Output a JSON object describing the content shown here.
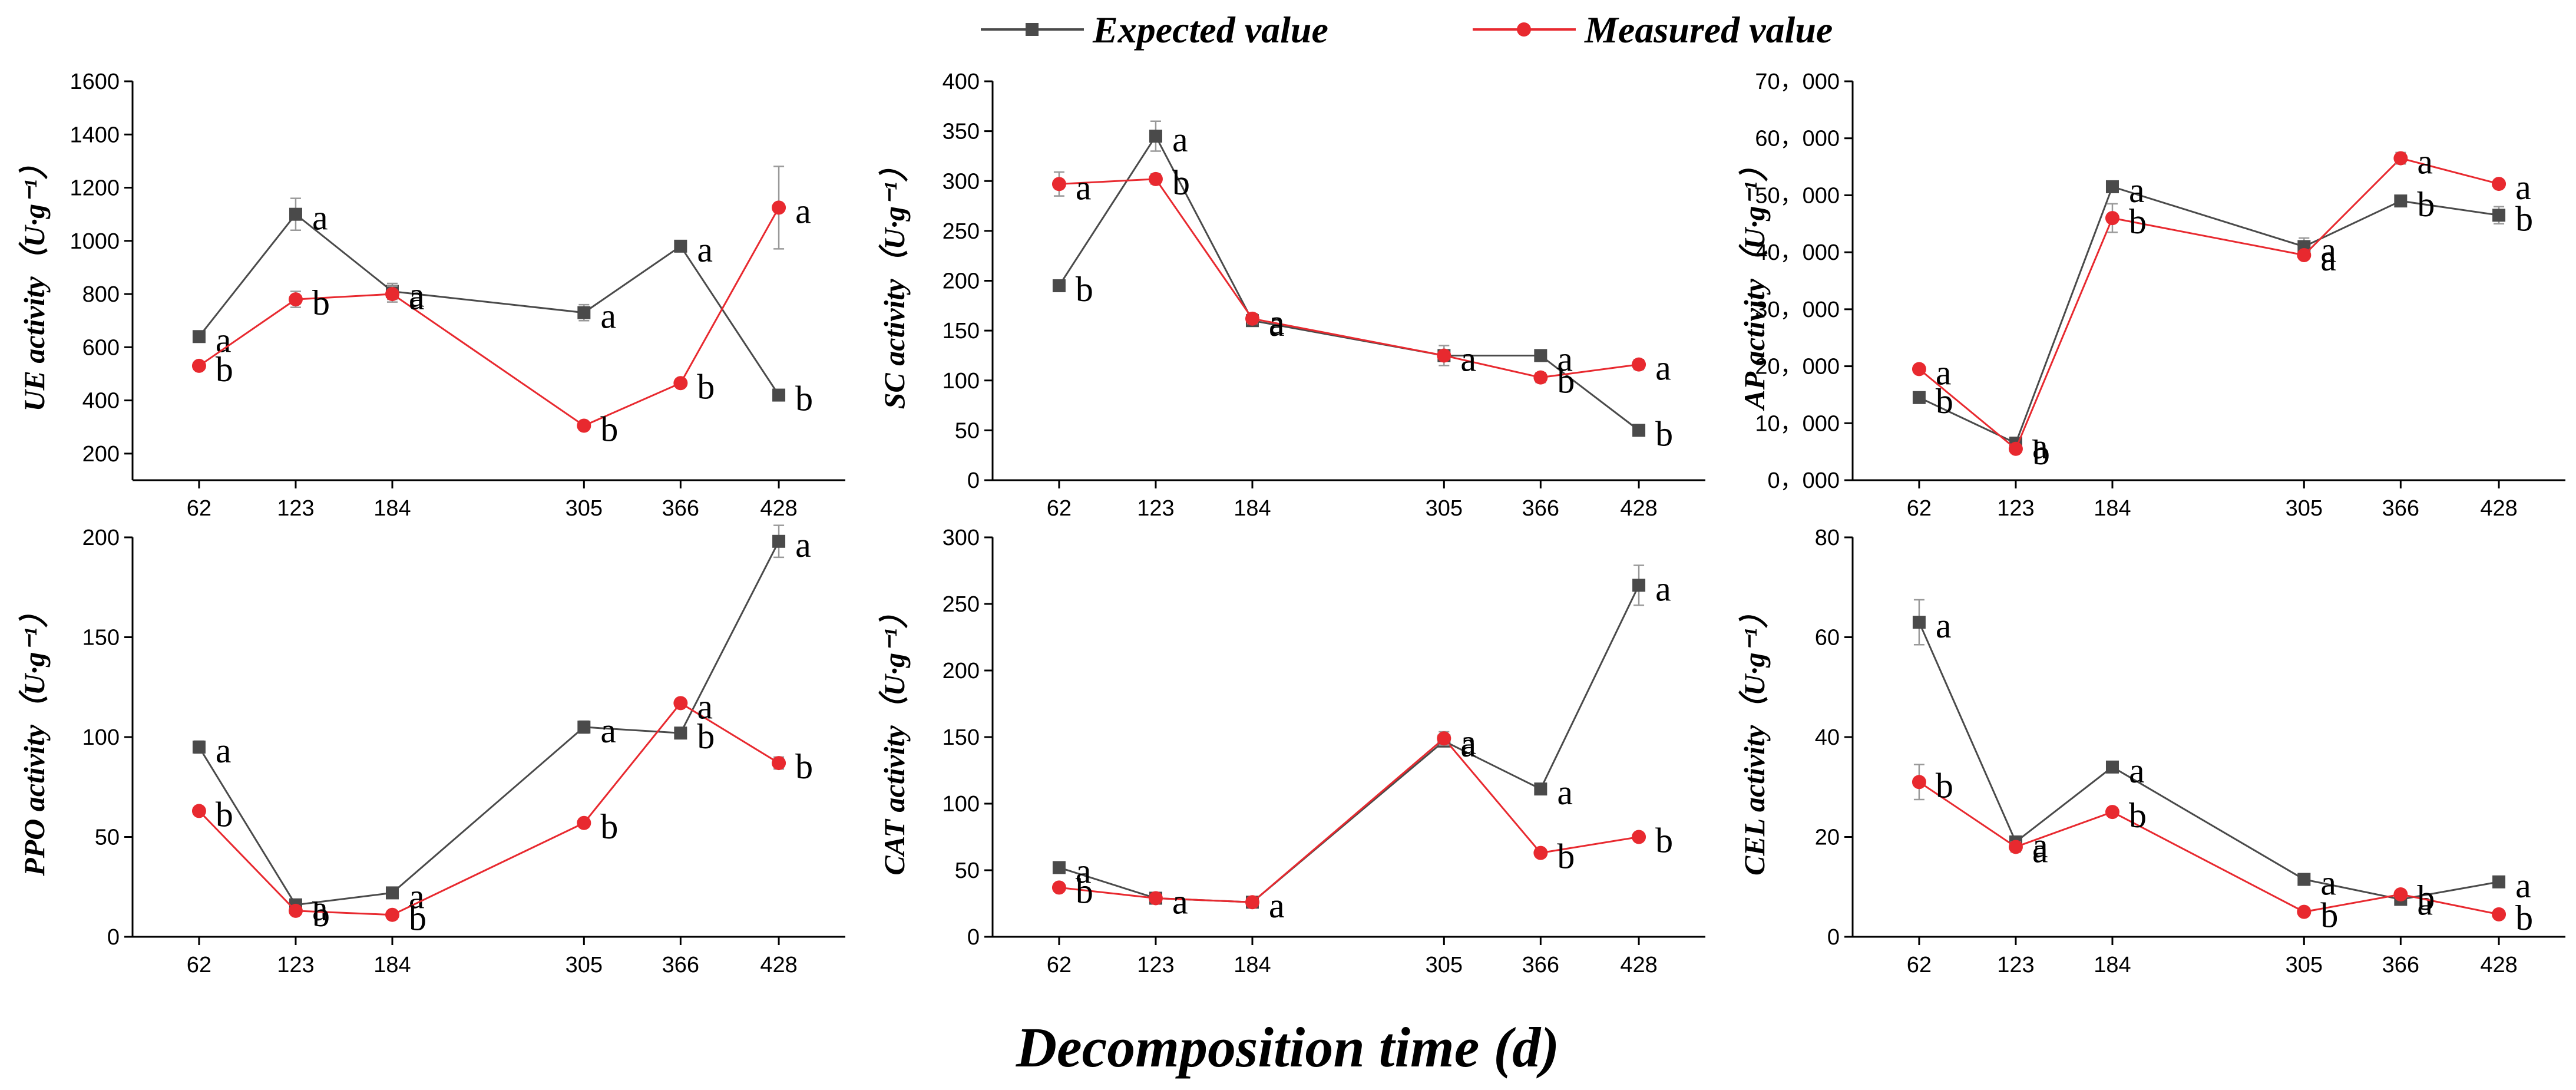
{
  "legend": {
    "expected": "Expected value",
    "measured": "Measured value"
  },
  "colors": {
    "expected": "#4a4a4a",
    "measured": "#e8292f",
    "error_bar": "#999999"
  },
  "xlabel": "Decomposition time (d)",
  "chart_data": [
    {
      "type": "line",
      "id": "ue",
      "ylabel": "UE activity（U·g⁻¹）",
      "x": [
        62,
        123,
        184,
        305,
        366,
        428
      ],
      "ylim": [
        100,
        1600
      ],
      "yticks": [
        200,
        400,
        600,
        800,
        1000,
        1200,
        1400,
        1600
      ],
      "ytick_labels": [
        "200",
        "400",
        "600",
        "800",
        "1000",
        "1200",
        "1400",
        "1600"
      ],
      "series": [
        {
          "name": "Expected value",
          "values": [
            640,
            1100,
            810,
            730,
            980,
            420
          ],
          "errors": [
            20,
            60,
            30,
            30,
            15,
            15
          ],
          "letters": [
            "a",
            "a",
            "a",
            "a",
            "a",
            "b"
          ]
        },
        {
          "name": "Measured value",
          "values": [
            530,
            780,
            800,
            305,
            465,
            1125
          ],
          "errors": [
            15,
            30,
            30,
            15,
            15,
            155
          ],
          "letters": [
            "b",
            "b",
            "a",
            "b",
            "b",
            "a"
          ]
        }
      ]
    },
    {
      "type": "line",
      "id": "sc",
      "ylabel": "SC activity（U·g⁻¹）",
      "x": [
        62,
        123,
        184,
        305,
        366,
        428
      ],
      "ylim": [
        0,
        400
      ],
      "yticks": [
        0,
        50,
        100,
        150,
        200,
        250,
        300,
        350,
        400
      ],
      "ytick_labels": [
        "0",
        "50",
        "100",
        "150",
        "200",
        "250",
        "300",
        "350",
        "400"
      ],
      "series": [
        {
          "name": "Expected value",
          "values": [
            195,
            345,
            160,
            125,
            125,
            50
          ],
          "errors": [
            5,
            15,
            5,
            5,
            3,
            3
          ],
          "letters": [
            "b",
            "a",
            "a",
            "a",
            "a",
            "b"
          ]
        },
        {
          "name": "Measured value",
          "values": [
            297,
            302,
            162,
            125,
            103,
            116
          ],
          "errors": [
            12,
            5,
            5,
            10,
            5,
            5
          ],
          "letters": [
            "a",
            "b",
            "a",
            "a",
            "b",
            "a"
          ]
        }
      ]
    },
    {
      "type": "line",
      "id": "ap",
      "ylabel": "AP activity（U·g⁻¹）",
      "x": [
        62,
        123,
        184,
        305,
        366,
        428
      ],
      "ylim": [
        0,
        70000
      ],
      "yticks": [
        0,
        10000,
        20000,
        30000,
        40000,
        50000,
        60000,
        70000
      ],
      "ytick_labels": [
        "0，000",
        "10，000",
        "20，000",
        "30，000",
        "40，000",
        "50，000",
        "60，000",
        "70，000"
      ],
      "series": [
        {
          "name": "Expected value",
          "values": [
            14500,
            6500,
            51500,
            41000,
            49000,
            46500
          ],
          "errors": [
            500,
            500,
            1000,
            1500,
            700,
            1500
          ],
          "letters": [
            "b",
            "a",
            "a",
            "a",
            "b",
            "b"
          ]
        },
        {
          "name": "Measured value",
          "values": [
            19500,
            5500,
            46000,
            39500,
            56500,
            52000
          ],
          "errors": [
            500,
            500,
            2500,
            700,
            1000,
            700
          ],
          "letters": [
            "a",
            "b",
            "b",
            "a",
            "a",
            "a"
          ]
        }
      ]
    },
    {
      "type": "line",
      "id": "ppo",
      "ylabel": "PPO activity（U·g⁻¹）",
      "x": [
        62,
        123,
        184,
        305,
        366,
        428
      ],
      "ylim": [
        0,
        200
      ],
      "yticks": [
        0,
        50,
        100,
        150,
        200
      ],
      "ytick_labels": [
        "0",
        "50",
        "100",
        "150",
        "200"
      ],
      "series": [
        {
          "name": "Expected value",
          "values": [
            95,
            16,
            22,
            105,
            102,
            198
          ],
          "errors": [
            3,
            2,
            2,
            3,
            2,
            8
          ],
          "letters": [
            "a",
            "a",
            "a",
            "a",
            "b",
            "a"
          ]
        },
        {
          "name": "Measured value",
          "values": [
            63,
            13,
            11,
            57,
            117,
            87
          ],
          "errors": [
            2,
            2,
            2,
            2,
            2,
            3
          ],
          "letters": [
            "b",
            "b",
            "b",
            "b",
            "a",
            "b"
          ]
        }
      ]
    },
    {
      "type": "line",
      "id": "cat",
      "ylabel": "CAT activity（U·g⁻¹）",
      "x": [
        62,
        123,
        184,
        305,
        366,
        428
      ],
      "ylim": [
        0,
        300
      ],
      "yticks": [
        0,
        50,
        100,
        150,
        200,
        250,
        300
      ],
      "ytick_labels": [
        "0",
        "50",
        "100",
        "150",
        "200",
        "250",
        "300"
      ],
      "series": [
        {
          "name": "Expected value",
          "values": [
            52,
            29,
            26,
            147,
            111,
            264
          ],
          "errors": [
            2,
            2,
            2,
            3,
            3,
            15
          ],
          "letters": [
            "a",
            "a",
            "a",
            "a",
            "a",
            "a"
          ]
        },
        {
          "name": "Measured value",
          "values": [
            37,
            29,
            26,
            149,
            63,
            75
          ],
          "errors": [
            2,
            2,
            2,
            5,
            2,
            2
          ],
          "letters": [
            "b",
            "a",
            "a",
            "a",
            "b",
            "b"
          ]
        }
      ]
    },
    {
      "type": "line",
      "id": "cel",
      "ylabel": "CEL activity（U·g⁻¹）",
      "x": [
        62,
        123,
        184,
        305,
        366,
        428
      ],
      "ylim": [
        0,
        80
      ],
      "yticks": [
        0,
        20,
        40,
        60,
        80
      ],
      "ytick_labels": [
        "0",
        "20",
        "40",
        "60",
        "80"
      ],
      "series": [
        {
          "name": "Expected value",
          "values": [
            63,
            19,
            34,
            11.5,
            7.5,
            11
          ],
          "errors": [
            4.5,
            1,
            1,
            1,
            0.5,
            0.5
          ],
          "letters": [
            "a",
            "a",
            "a",
            "a",
            "a",
            "a"
          ]
        },
        {
          "name": "Measured value",
          "values": [
            31,
            18,
            25,
            5,
            8.5,
            4.5
          ],
          "errors": [
            3.5,
            1,
            0.5,
            0.5,
            0.5,
            0.5
          ],
          "letters": [
            "b",
            "a",
            "b",
            "b",
            "b",
            "b"
          ]
        }
      ]
    }
  ]
}
